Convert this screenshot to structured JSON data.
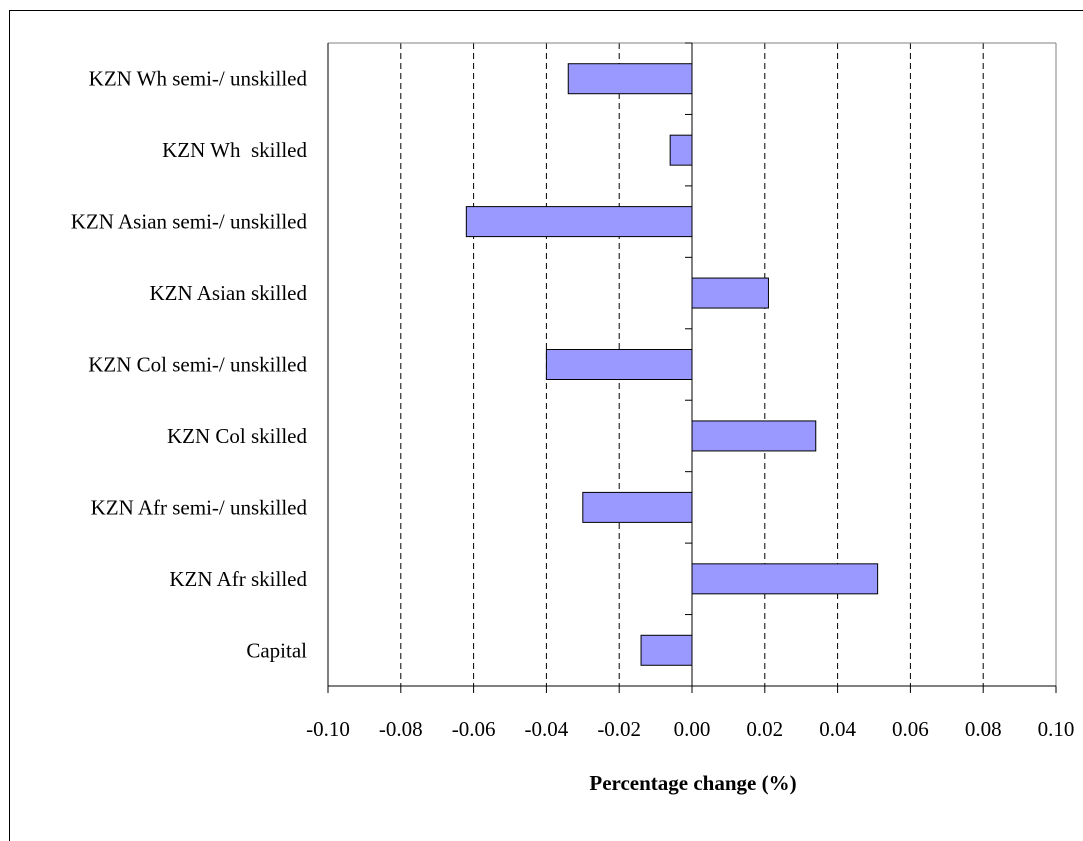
{
  "chart_data": {
    "type": "bar",
    "orientation": "horizontal",
    "categories": [
      "KZN Wh semi-/ unskilled",
      "KZN Wh  skilled",
      "KZN Asian semi-/ unskilled",
      "KZN Asian skilled",
      "KZN Col semi-/ unskilled",
      "KZN Col skilled",
      "KZN Afr semi-/ unskilled",
      "KZN Afr skilled",
      "Capital"
    ],
    "values": [
      -0.034,
      -0.006,
      -0.062,
      0.021,
      -0.04,
      0.034,
      -0.03,
      0.051,
      -0.014
    ],
    "xlabel": "Percentage change (%)",
    "ylabel": "",
    "xlim": [
      -0.1,
      0.1
    ],
    "xticks": [
      "-0.10",
      "-0.08",
      "-0.06",
      "-0.04",
      "-0.02",
      "0.00",
      "0.02",
      "0.04",
      "0.06",
      "0.08",
      "0.10"
    ],
    "grid": "vertical dashed",
    "bar_color": "#9999ff",
    "legend": "none"
  }
}
